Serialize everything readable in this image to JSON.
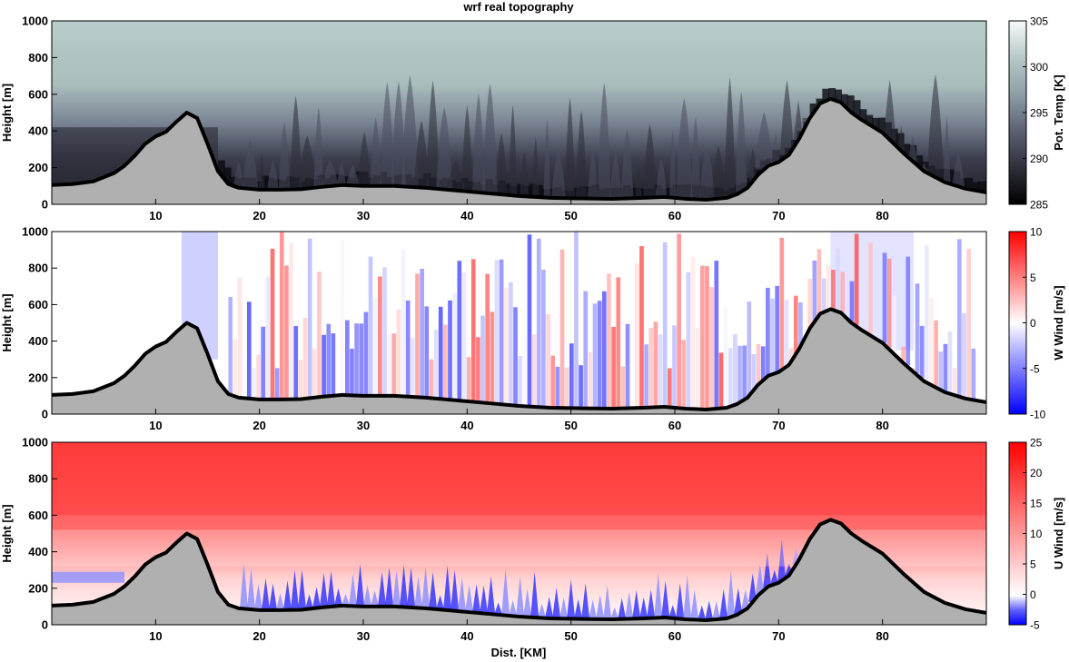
{
  "title": "wrf real topography",
  "xlabel": "Dist. [KM]",
  "colors": {
    "terrain_fill": "#b0b0b0",
    "terrain_line": "#000000",
    "temp_cmap": [
      "#000000",
      "#3a3a47",
      "#6a6f80",
      "#9aaab0",
      "#b9cccb",
      "#f7f9f9"
    ],
    "wind_cmap": [
      "#0000ff",
      "#ffffff",
      "#ff0000"
    ]
  },
  "chart_data": [
    {
      "type": "heatmap",
      "name_key": "pot_temp",
      "ylabel": "Height [m]",
      "colorbar_label": "Pot. Temp [K]",
      "colorbar_ticks": [
        "285",
        "290",
        "295",
        "300",
        "305"
      ],
      "clim": [
        285,
        305
      ],
      "xlim": [
        0,
        90
      ],
      "ylim": [
        0,
        1000
      ],
      "x_ticks": [
        "10",
        "20",
        "30",
        "40",
        "50",
        "60",
        "70",
        "80"
      ],
      "y_ticks": [
        "0",
        "200",
        "400",
        "600",
        "800",
        "1000"
      ]
    },
    {
      "type": "heatmap",
      "name_key": "w_wind",
      "ylabel": "Height [m]",
      "colorbar_label": "W Wind [m/s]",
      "colorbar_ticks": [
        "-10",
        "-5",
        "0",
        "5",
        "10"
      ],
      "clim": [
        -10,
        10
      ],
      "xlim": [
        0,
        90
      ],
      "ylim": [
        0,
        1000
      ],
      "x_ticks": [
        "10",
        "20",
        "30",
        "40",
        "50",
        "60",
        "70",
        "80"
      ],
      "y_ticks": [
        "0",
        "200",
        "400",
        "600",
        "800",
        "1000"
      ]
    },
    {
      "type": "heatmap",
      "name_key": "u_wind",
      "ylabel": "Height [m]",
      "colorbar_label": "U Wind [m/s]",
      "colorbar_ticks": [
        "-5",
        "0",
        "5",
        "10",
        "15",
        "20",
        "25"
      ],
      "clim": [
        -5,
        25
      ],
      "xlim": [
        0,
        90
      ],
      "ylim": [
        0,
        1000
      ],
      "x_ticks": [
        "10",
        "20",
        "30",
        "40",
        "50",
        "60",
        "70",
        "80"
      ],
      "y_ticks": [
        "0",
        "200",
        "400",
        "600",
        "800",
        "1000"
      ]
    }
  ],
  "terrain": {
    "x": [
      0,
      2,
      4,
      6,
      7,
      8,
      9,
      10,
      11,
      12,
      13,
      14,
      15,
      16,
      17,
      18,
      20,
      22,
      24,
      26,
      28,
      30,
      33,
      36,
      39,
      42,
      45,
      48,
      51,
      54,
      57,
      59,
      61,
      63,
      65,
      66,
      67,
      68,
      69,
      70,
      71,
      72,
      73,
      74,
      75,
      76,
      77,
      78,
      80,
      82,
      84,
      86,
      88,
      90
    ],
    "y": [
      105,
      110,
      125,
      170,
      210,
      265,
      330,
      370,
      395,
      450,
      500,
      470,
      330,
      180,
      110,
      90,
      80,
      80,
      82,
      95,
      105,
      100,
      100,
      90,
      75,
      60,
      45,
      35,
      32,
      30,
      35,
      40,
      30,
      25,
      35,
      55,
      90,
      160,
      210,
      230,
      270,
      360,
      470,
      550,
      575,
      555,
      500,
      460,
      390,
      280,
      180,
      120,
      85,
      65
    ]
  }
}
